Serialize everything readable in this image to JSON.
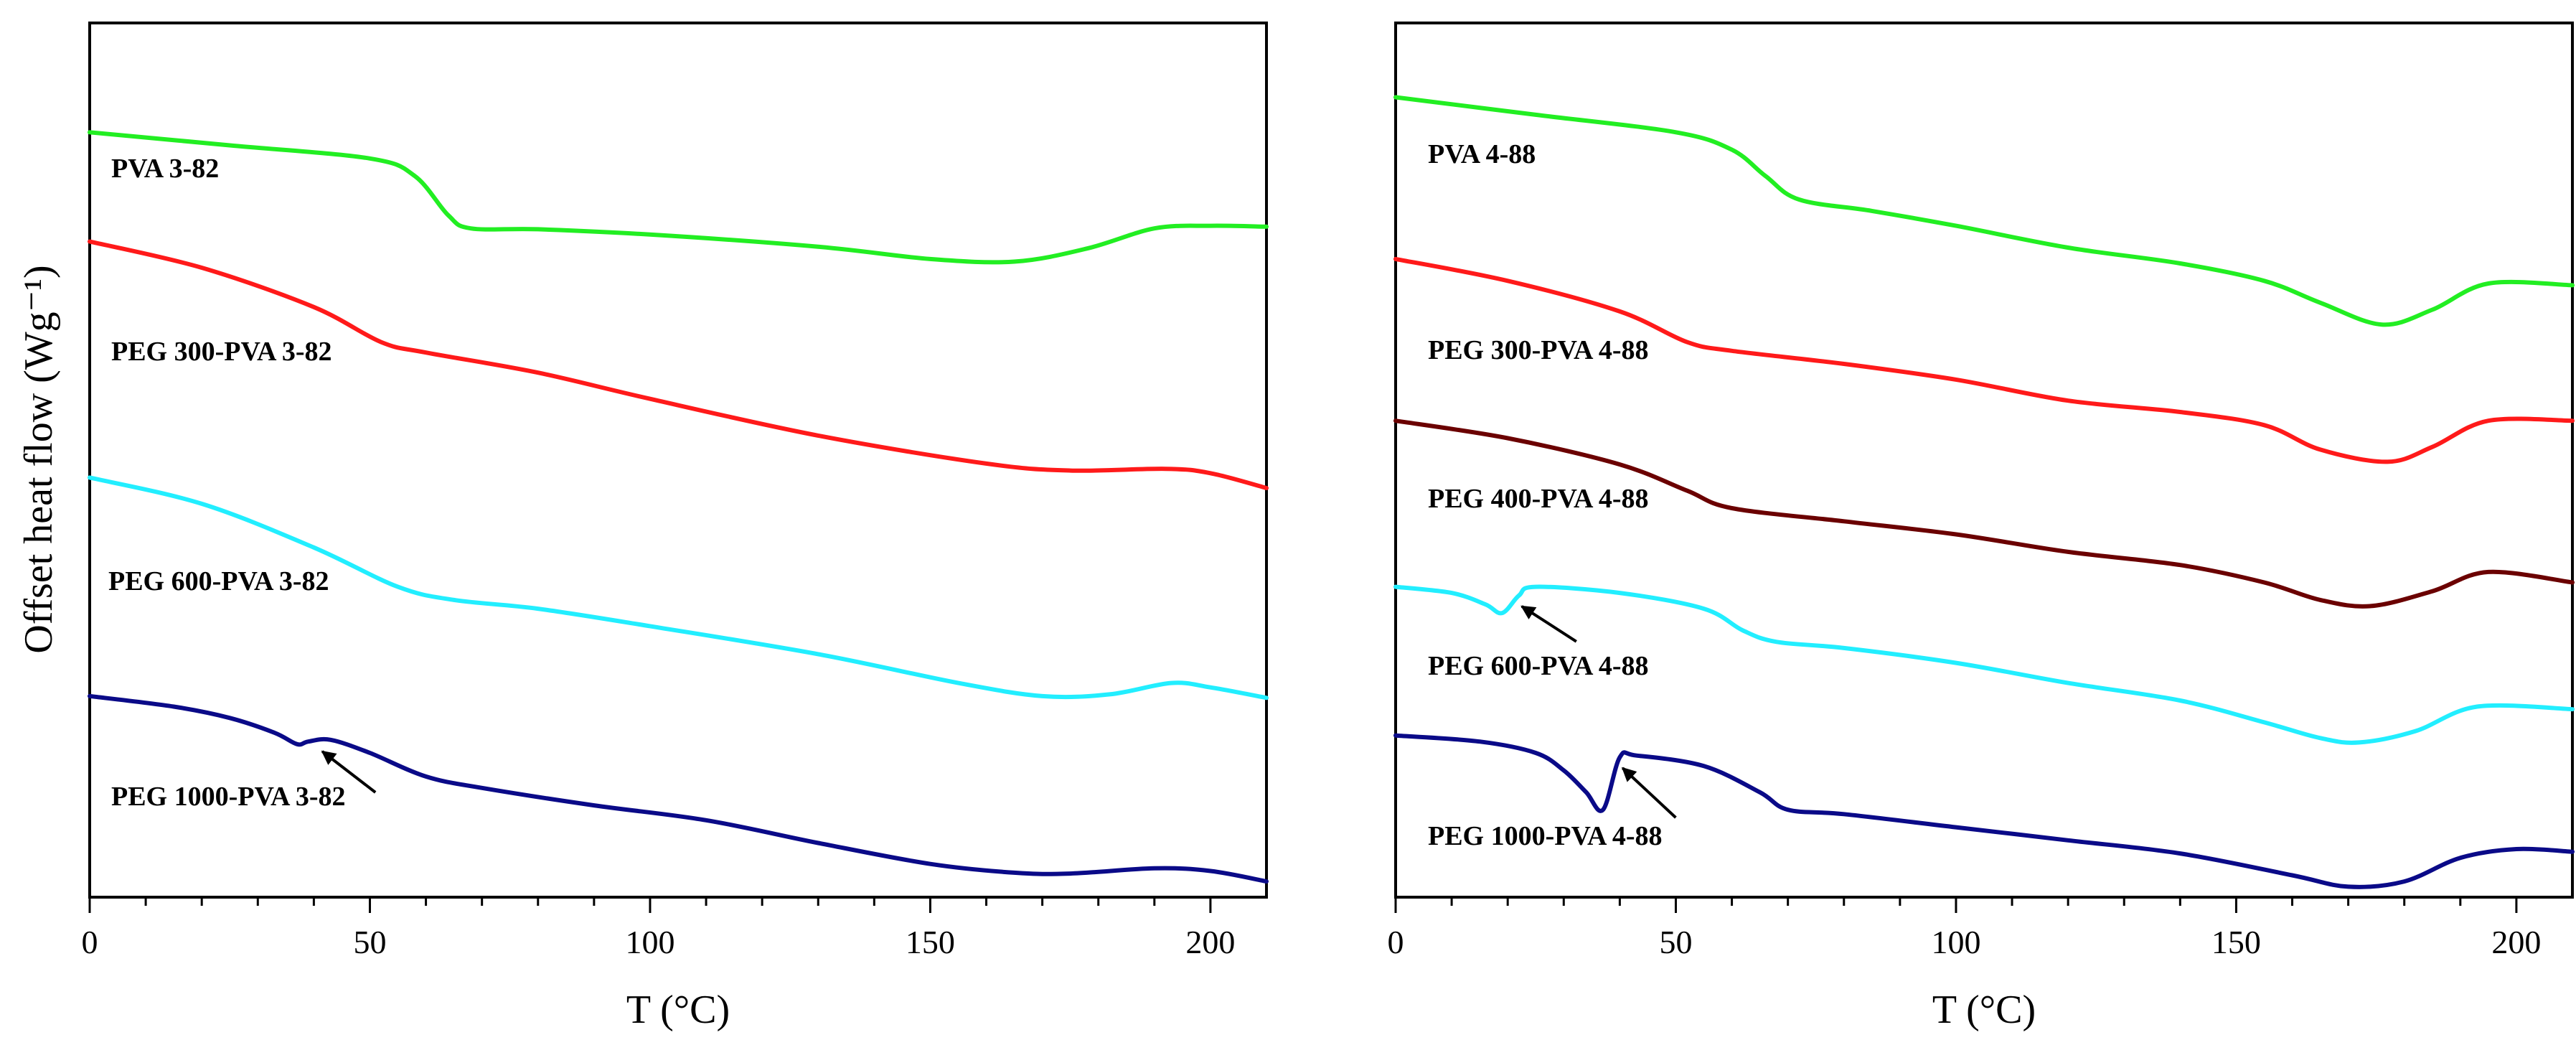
{
  "ylabel": "Offset heat flow (Wg⁻¹)",
  "chart_data": [
    {
      "type": "line",
      "panel": "left",
      "xlabel": "T (°C)",
      "xlim": [
        0,
        210
      ],
      "ylim": [
        0,
        10
      ],
      "x_ticks": [
        0,
        50,
        100,
        150,
        200
      ],
      "x_tick_labels": [
        "0",
        "50",
        "100",
        "150",
        "200"
      ],
      "yticks_shown": false,
      "series": [
        {
          "name": "PVA 3-82",
          "label": "PVA 3-82",
          "color": "#22ee22",
          "points": [
            [
              0,
              8.75
            ],
            [
              25,
              8.6
            ],
            [
              50,
              8.45
            ],
            [
              58,
              8.25
            ],
            [
              64,
              7.8
            ],
            [
              68,
              7.65
            ],
            [
              80,
              7.64
            ],
            [
              100,
              7.58
            ],
            [
              130,
              7.44
            ],
            [
              150,
              7.3
            ],
            [
              165,
              7.27
            ],
            [
              178,
              7.42
            ],
            [
              190,
              7.65
            ],
            [
              200,
              7.68
            ],
            [
              210,
              7.67
            ]
          ]
        },
        {
          "name": "PEG 300-PVA 3-82",
          "label": "PEG 300-PVA 3-82",
          "color": "#ff1a1a",
          "points": [
            [
              0,
              7.5
            ],
            [
              20,
              7.2
            ],
            [
              40,
              6.75
            ],
            [
              52,
              6.35
            ],
            [
              60,
              6.23
            ],
            [
              80,
              6.0
            ],
            [
              100,
              5.7
            ],
            [
              130,
              5.28
            ],
            [
              160,
              4.96
            ],
            [
              175,
              4.88
            ],
            [
              192,
              4.9
            ],
            [
              200,
              4.85
            ],
            [
              210,
              4.68
            ]
          ]
        },
        {
          "name": "PEG 600-PVA 3-82",
          "label": "PEG 600-PVA 3-82",
          "color": "#22eeff",
          "points": [
            [
              0,
              4.8
            ],
            [
              20,
              4.5
            ],
            [
              40,
              4.0
            ],
            [
              55,
              3.55
            ],
            [
              65,
              3.4
            ],
            [
              80,
              3.3
            ],
            [
              100,
              3.1
            ],
            [
              130,
              2.78
            ],
            [
              155,
              2.45
            ],
            [
              170,
              2.3
            ],
            [
              182,
              2.32
            ],
            [
              193,
              2.45
            ],
            [
              200,
              2.4
            ],
            [
              210,
              2.28
            ]
          ]
        },
        {
          "name": "PEG 1000-PVA 3-82",
          "label": "PEG 1000-PVA 3-82",
          "color": "#0a0a88",
          "points": [
            [
              0,
              2.3
            ],
            [
              15,
              2.18
            ],
            [
              25,
              2.05
            ],
            [
              33,
              1.88
            ],
            [
              37,
              1.75
            ],
            [
              39,
              1.78
            ],
            [
              43,
              1.8
            ],
            [
              50,
              1.65
            ],
            [
              60,
              1.38
            ],
            [
              70,
              1.25
            ],
            [
              90,
              1.05
            ],
            [
              110,
              0.88
            ],
            [
              130,
              0.62
            ],
            [
              150,
              0.38
            ],
            [
              165,
              0.28
            ],
            [
              175,
              0.27
            ],
            [
              190,
              0.33
            ],
            [
              200,
              0.3
            ],
            [
              210,
              0.18
            ]
          ]
        }
      ],
      "annotations": [
        {
          "type": "arrow",
          "series": "PEG 1000-PVA 3-82",
          "points_to_x": 41
        }
      ]
    },
    {
      "type": "line",
      "panel": "right",
      "xlabel": "T (°C)",
      "xlim": [
        0,
        210
      ],
      "ylim": [
        0,
        10
      ],
      "x_ticks": [
        0,
        50,
        100,
        150,
        200
      ],
      "x_tick_labels": [
        "0",
        "50",
        "100",
        "150",
        "200"
      ],
      "yticks_shown": false,
      "series": [
        {
          "name": "PVA 4-88",
          "label": "PVA 4-88",
          "color": "#22ee22",
          "points": [
            [
              0,
              9.15
            ],
            [
              25,
              8.95
            ],
            [
              50,
              8.75
            ],
            [
              60,
              8.55
            ],
            [
              66,
              8.25
            ],
            [
              72,
              7.98
            ],
            [
              85,
              7.85
            ],
            [
              100,
              7.68
            ],
            [
              120,
              7.43
            ],
            [
              140,
              7.25
            ],
            [
              155,
              7.05
            ],
            [
              165,
              6.8
            ],
            [
              176,
              6.55
            ],
            [
              185,
              6.72
            ],
            [
              195,
              7.02
            ],
            [
              210,
              7.0
            ]
          ]
        },
        {
          "name": "PEG 300-PVA 4-88",
          "label": "PEG 300-PVA 4-88",
          "color": "#ff1a1a",
          "points": [
            [
              0,
              7.3
            ],
            [
              20,
              7.05
            ],
            [
              40,
              6.7
            ],
            [
              52,
              6.35
            ],
            [
              60,
              6.25
            ],
            [
              80,
              6.1
            ],
            [
              100,
              5.92
            ],
            [
              120,
              5.68
            ],
            [
              140,
              5.55
            ],
            [
              155,
              5.4
            ],
            [
              165,
              5.12
            ],
            [
              177,
              4.98
            ],
            [
              185,
              5.15
            ],
            [
              195,
              5.45
            ],
            [
              210,
              5.45
            ]
          ]
        },
        {
          "name": "PEG 400-PVA 4-88",
          "label": "PEG 400-PVA 4-88",
          "color": "#6b0000",
          "points": [
            [
              0,
              5.45
            ],
            [
              20,
              5.25
            ],
            [
              40,
              4.95
            ],
            [
              52,
              4.65
            ],
            [
              60,
              4.45
            ],
            [
              80,
              4.3
            ],
            [
              100,
              4.15
            ],
            [
              120,
              3.95
            ],
            [
              140,
              3.8
            ],
            [
              155,
              3.6
            ],
            [
              165,
              3.4
            ],
            [
              174,
              3.33
            ],
            [
              185,
              3.5
            ],
            [
              195,
              3.72
            ],
            [
              210,
              3.6
            ]
          ]
        },
        {
          "name": "PEG 600-PVA 4-88",
          "label": "PEG 600-PVA 4-88",
          "color": "#22eeff",
          "points": [
            [
              0,
              3.55
            ],
            [
              10,
              3.48
            ],
            [
              16,
              3.35
            ],
            [
              19,
              3.25
            ],
            [
              22,
              3.45
            ],
            [
              25,
              3.55
            ],
            [
              40,
              3.48
            ],
            [
              55,
              3.3
            ],
            [
              62,
              3.05
            ],
            [
              68,
              2.92
            ],
            [
              80,
              2.85
            ],
            [
              100,
              2.68
            ],
            [
              120,
              2.45
            ],
            [
              140,
              2.25
            ],
            [
              155,
              2.0
            ],
            [
              165,
              1.82
            ],
            [
              172,
              1.77
            ],
            [
              182,
              1.9
            ],
            [
              193,
              2.18
            ],
            [
              210,
              2.15
            ]
          ]
        },
        {
          "name": "PEG 1000-PVA 4-88",
          "label": "PEG 1000-PVA 4-88",
          "color": "#0a0a88",
          "points": [
            [
              0,
              1.85
            ],
            [
              15,
              1.78
            ],
            [
              25,
              1.65
            ],
            [
              30,
              1.45
            ],
            [
              34,
              1.2
            ],
            [
              37,
              1.0
            ],
            [
              40,
              1.6
            ],
            [
              43,
              1.62
            ],
            [
              55,
              1.5
            ],
            [
              65,
              1.2
            ],
            [
              70,
              1.0
            ],
            [
              80,
              0.95
            ],
            [
              100,
              0.8
            ],
            [
              120,
              0.65
            ],
            [
              140,
              0.5
            ],
            [
              160,
              0.25
            ],
            [
              170,
              0.12
            ],
            [
              180,
              0.18
            ],
            [
              190,
              0.45
            ],
            [
              200,
              0.55
            ],
            [
              210,
              0.52
            ]
          ]
        }
      ],
      "annotations": [
        {
          "type": "arrow",
          "series": "PEG 600-PVA 4-88",
          "points_to_x": 22
        },
        {
          "type": "arrow",
          "series": "PEG 1000-PVA 4-88",
          "points_to_x": 40
        }
      ]
    }
  ]
}
